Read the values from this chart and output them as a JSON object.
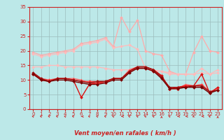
{
  "title": "",
  "xlabel": "Vent moyen/en rafales ( km/h )",
  "xlim": [
    -0.5,
    23.5
  ],
  "ylim": [
    0,
    35
  ],
  "yticks": [
    0,
    5,
    10,
    15,
    20,
    25,
    30,
    35
  ],
  "xticks": [
    0,
    1,
    2,
    3,
    4,
    5,
    6,
    7,
    8,
    9,
    10,
    11,
    12,
    13,
    14,
    15,
    16,
    17,
    18,
    19,
    20,
    21,
    22,
    23
  ],
  "bg_color": "#bce8e8",
  "grid_color": "#9bbcbc",
  "series": [
    {
      "y": [
        19.5,
        18.5,
        19.0,
        19.5,
        20.0,
        20.5,
        22.5,
        23.0,
        23.5,
        24.5,
        21.5,
        31.5,
        26.5,
        30.5,
        20.0,
        19.0,
        18.5,
        13.0,
        12.0,
        12.0,
        19.5,
        25.0,
        20.0,
        19.5
      ],
      "color": "#ffaaaa",
      "lw": 0.9,
      "marker": "D",
      "ms": 2
    },
    {
      "y": [
        19.0,
        18.0,
        18.5,
        19.0,
        19.5,
        20.0,
        22.0,
        22.5,
        23.0,
        24.0,
        21.0,
        21.5,
        22.0,
        20.5,
        14.0,
        13.0,
        13.0,
        12.5,
        12.0,
        12.0,
        12.0,
        12.5,
        12.0,
        13.5
      ],
      "color": "#ffbbbb",
      "lw": 0.9,
      "marker": "D",
      "ms": 2
    },
    {
      "y": [
        14.5,
        14.5,
        15.0,
        15.0,
        14.5,
        14.5,
        14.5,
        14.5,
        14.5,
        14.0,
        13.5,
        13.5,
        13.5,
        14.5,
        14.5,
        13.5,
        13.0,
        12.0,
        12.0,
        12.0,
        12.0,
        14.0,
        12.0,
        12.5
      ],
      "color": "#ffbbbb",
      "lw": 0.9,
      "marker": "D",
      "ms": 2
    },
    {
      "y": [
        12.5,
        10.5,
        9.5,
        10.5,
        10.5,
        10.5,
        10.0,
        9.0,
        9.0,
        9.0,
        10.5,
        10.5,
        13.5,
        14.5,
        14.5,
        13.5,
        11.5,
        7.0,
        7.0,
        8.5,
        8.0,
        8.0,
        6.0,
        7.0
      ],
      "color": "#ff6666",
      "lw": 1.0,
      "marker": "^",
      "ms": 2.5
    },
    {
      "y": [
        12.0,
        10.5,
        10.0,
        10.5,
        10.5,
        10.0,
        9.5,
        9.5,
        9.5,
        9.5,
        10.5,
        10.5,
        13.0,
        14.0,
        14.0,
        13.0,
        11.0,
        7.5,
        7.5,
        8.0,
        8.0,
        8.5,
        6.0,
        6.5
      ],
      "color": "#ff4444",
      "lw": 1.0,
      "marker": "D",
      "ms": 2
    },
    {
      "y": [
        12.0,
        10.0,
        9.5,
        10.5,
        10.5,
        10.0,
        4.0,
        8.5,
        9.0,
        9.5,
        10.5,
        10.5,
        13.0,
        14.5,
        14.5,
        13.5,
        11.5,
        7.0,
        7.5,
        8.0,
        8.0,
        12.0,
        5.5,
        7.5
      ],
      "color": "#dd1111",
      "lw": 1.0,
      "marker": "D",
      "ms": 2
    },
    {
      "y": [
        12.5,
        10.5,
        9.5,
        10.5,
        10.5,
        10.0,
        9.5,
        9.0,
        9.5,
        9.5,
        10.5,
        10.5,
        13.0,
        14.5,
        14.5,
        13.5,
        11.0,
        7.5,
        7.5,
        7.5,
        8.0,
        8.0,
        6.0,
        6.5
      ],
      "color": "#991111",
      "lw": 1.0,
      "marker": "D",
      "ms": 2
    },
    {
      "y": [
        12.0,
        10.0,
        9.5,
        10.0,
        10.0,
        9.5,
        9.0,
        8.5,
        8.5,
        9.0,
        10.0,
        10.0,
        12.5,
        14.0,
        14.0,
        13.0,
        10.5,
        7.0,
        7.0,
        7.5,
        7.5,
        7.5,
        5.5,
        6.5
      ],
      "color": "#770000",
      "lw": 1.0,
      "marker": "D",
      "ms": 2
    }
  ],
  "wind_arrows": {
    "color": "#cc2222",
    "angles": [
      225,
      225,
      225,
      225,
      225,
      225,
      270,
      225,
      225,
      225,
      225,
      270,
      225,
      225,
      225,
      225,
      180,
      225,
      270,
      270,
      315,
      270,
      225,
      180
    ]
  },
  "tick_color": "#cc2222",
  "spine_color": "#cc2222",
  "xlabel_color": "#cc2222",
  "tick_fontsize": 5,
  "xlabel_fontsize": 6
}
